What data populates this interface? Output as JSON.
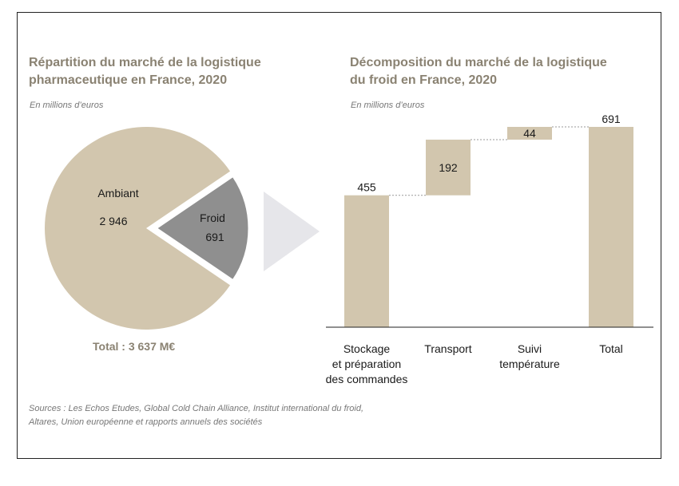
{
  "left": {
    "title_line1": "Répartition du marché de la logistique",
    "title_line2": "pharmaceutique en France, 2020",
    "subtitle": "En millions d’euros",
    "total": "Total : 3 637 M€"
  },
  "right": {
    "title_line1": "Décomposition du marché de la logistique",
    "title_line2": "du froid en France, 2020",
    "subtitle": "En millions d’euros"
  },
  "sources_line1": "Sources : Les Echos Etudes, Global Cold Chain Alliance, Institut international du froid,",
  "sources_line2": "Altares, Union européenne et rapports annuels des sociétés",
  "colors": {
    "beige": "#d2c6ae",
    "grey": "#8f8f8f",
    "arrow": "#e6e6ea",
    "title": "#8a8272"
  },
  "chart_data": [
    {
      "type": "pie",
      "slices": [
        {
          "name": "Ambiant",
          "value": 2946,
          "label": "2 946",
          "color": "#d2c6ae"
        },
        {
          "name": "Froid",
          "value": 691,
          "label": "691",
          "color": "#8f8f8f",
          "exploded": true
        }
      ],
      "total_label": "Total : 3 637 M€"
    },
    {
      "type": "bar",
      "subtype": "waterfall",
      "ylim": [
        0,
        691
      ],
      "bars": [
        {
          "category": [
            "Stockage",
            "et préparation",
            "des commandes"
          ],
          "start": 0,
          "value": 455,
          "label": "455"
        },
        {
          "category": [
            "Transport"
          ],
          "start": 455,
          "value": 192,
          "label": "192"
        },
        {
          "category": [
            "Suivi",
            "température"
          ],
          "start": 647,
          "value": 44,
          "label": "44"
        },
        {
          "category": [
            "Total"
          ],
          "start": 0,
          "value": 691,
          "label": "691"
        }
      ]
    }
  ]
}
